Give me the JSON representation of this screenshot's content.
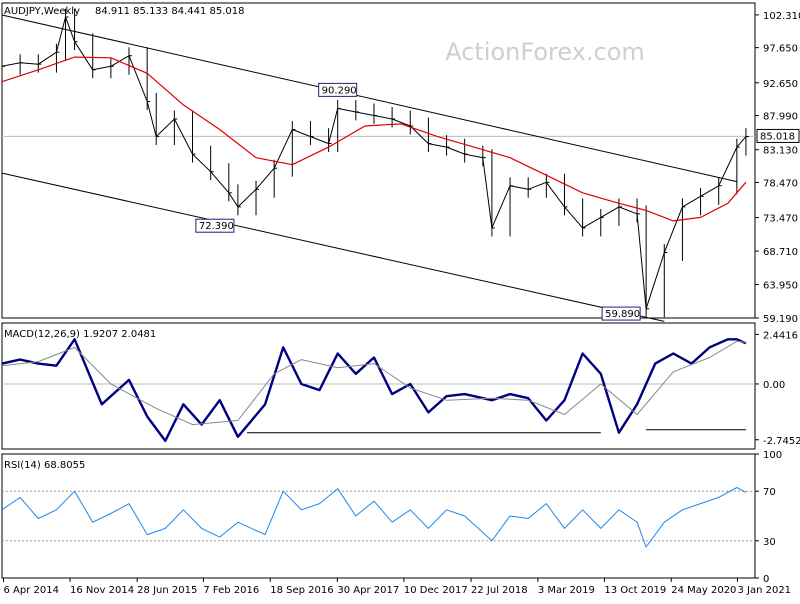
{
  "chart_data": {
    "type": "line",
    "watermark": "ActionForex.com",
    "x_ticks": [
      "6 Apr 2014",
      "16 Nov 2014",
      "28 Jun 2015",
      "7 Feb 2016",
      "18 Sep 2016",
      "30 Apr 2017",
      "10 Dec 2017",
      "22 Jul 2018",
      "3 Mar 2019",
      "13 Oct 2019",
      "24 May 2020",
      "3 Jan 2021"
    ],
    "price_panel": {
      "label": "AUDJPY,Weekly",
      "ohlc_text": "84.911 85.133 84.441 85.018",
      "y_ticks": [
        "102.310",
        "97.650",
        "92.650",
        "87.990",
        "83.130",
        "78.470",
        "73.470",
        "68.710",
        "63.950",
        "59.190"
      ],
      "ylim": [
        59.19,
        104.0
      ],
      "last_price": "85.018",
      "annotations": [
        {
          "text": "90.290",
          "date": "2017-05",
          "value": 90.29
        },
        {
          "text": "72.390",
          "date": "2016-06",
          "value": 72.39
        },
        {
          "text": "59.890",
          "date": "2020-03",
          "value": 59.89
        }
      ],
      "series": [
        {
          "role": "price",
          "color": "#000000",
          "x": [
            "2014-04",
            "2014-06",
            "2014-08",
            "2014-10",
            "2014-11",
            "2014-12",
            "2015-02",
            "2015-04",
            "2015-06",
            "2015-08",
            "2015-09",
            "2015-11",
            "2016-01",
            "2016-03",
            "2016-05",
            "2016-06",
            "2016-08",
            "2016-10",
            "2016-12",
            "2017-02",
            "2017-04",
            "2017-05",
            "2017-07",
            "2017-09",
            "2017-11",
            "2018-01",
            "2018-03",
            "2018-05",
            "2018-07",
            "2018-09",
            "2018-10",
            "2018-12",
            "2019-02",
            "2019-04",
            "2019-06",
            "2019-08",
            "2019-10",
            "2019-12",
            "2020-02",
            "2020-03",
            "2020-05",
            "2020-07",
            "2020-09",
            "2020-11",
            "2021-01",
            "2021-02"
          ],
          "close": [
            95.0,
            95.5,
            95.3,
            97.0,
            102.0,
            98.5,
            94.5,
            95.0,
            96.5,
            90.0,
            85.0,
            87.5,
            82.5,
            80.0,
            77.0,
            75.0,
            77.5,
            80.5,
            86.0,
            85.0,
            84.0,
            89.0,
            88.5,
            88.0,
            87.5,
            86.5,
            84.0,
            83.5,
            82.5,
            82.0,
            72.0,
            78.0,
            77.5,
            78.5,
            75.0,
            72.0,
            73.5,
            75.0,
            74.0,
            60.5,
            68.5,
            75.0,
            76.5,
            78.0,
            83.5,
            85.0
          ]
        },
        {
          "role": "moving-average",
          "color": "#e00000",
          "x": [
            "2014-04",
            "2014-08",
            "2014-12",
            "2015-04",
            "2015-08",
            "2015-12",
            "2016-04",
            "2016-08",
            "2016-12",
            "2017-04",
            "2017-08",
            "2017-12",
            "2018-04",
            "2018-08",
            "2018-12",
            "2019-04",
            "2019-08",
            "2019-12",
            "2020-03",
            "2020-06",
            "2020-09",
            "2020-12",
            "2021-02"
          ],
          "values": [
            92.8,
            94.5,
            96.3,
            96.2,
            94.0,
            89.5,
            86.0,
            82.0,
            81.0,
            83.5,
            86.5,
            86.8,
            85.0,
            83.5,
            82.0,
            79.5,
            77.0,
            75.5,
            74.5,
            73.0,
            73.5,
            75.5,
            78.5
          ]
        },
        {
          "role": "channel-upper",
          "color": "#000000",
          "x": [
            "2014-04",
            "2021-01"
          ],
          "values": [
            102.3,
            78.6
          ]
        },
        {
          "role": "channel-lower",
          "color": "#000000",
          "x": [
            "2014-04",
            "2020-05"
          ],
          "values": [
            79.8,
            58.7
          ]
        }
      ]
    },
    "macd_panel": {
      "label": "MACD(12,26,9) 1.9207 2.0481",
      "y_ticks": [
        "2.4416",
        "0.00",
        "-2.7452"
      ],
      "ylim": [
        -3.2,
        3.0
      ],
      "series": [
        {
          "role": "macd",
          "color": "#000080",
          "x": [
            "2014-04",
            "2014-06",
            "2014-08",
            "2014-10",
            "2014-12",
            "2015-03",
            "2015-06",
            "2015-08",
            "2015-10",
            "2015-12",
            "2016-02",
            "2016-04",
            "2016-06",
            "2016-09",
            "2016-11",
            "2017-01",
            "2017-03",
            "2017-05",
            "2017-07",
            "2017-09",
            "2017-11",
            "2018-01",
            "2018-03",
            "2018-05",
            "2018-07",
            "2018-10",
            "2018-12",
            "2019-02",
            "2019-04",
            "2019-06",
            "2019-08",
            "2019-10",
            "2019-12",
            "2020-02",
            "2020-04",
            "2020-06",
            "2020-08",
            "2020-10",
            "2020-12",
            "2021-01",
            "2021-02"
          ],
          "values": [
            1.0,
            1.2,
            1.0,
            0.9,
            2.2,
            -1.0,
            0.2,
            -1.6,
            -2.8,
            -1.0,
            -2.0,
            -0.8,
            -2.6,
            -1.0,
            1.8,
            0.0,
            -0.3,
            1.5,
            0.5,
            1.3,
            -0.5,
            0.0,
            -1.4,
            -0.6,
            -0.5,
            -0.8,
            -0.5,
            -0.7,
            -1.8,
            -0.8,
            1.5,
            0.5,
            -2.4,
            -1.0,
            1.0,
            1.5,
            1.0,
            1.8,
            2.2,
            2.2,
            2.0
          ]
        },
        {
          "role": "signal",
          "color": "#888888",
          "x": [
            "2014-04",
            "2014-08",
            "2014-12",
            "2015-04",
            "2015-09",
            "2016-01",
            "2016-06",
            "2016-10",
            "2017-01",
            "2017-05",
            "2017-09",
            "2018-01",
            "2018-05",
            "2018-10",
            "2019-02",
            "2019-06",
            "2019-10",
            "2020-02",
            "2020-06",
            "2020-10",
            "2021-01",
            "2021-02"
          ],
          "values": [
            0.9,
            1.1,
            1.8,
            0.0,
            -1.2,
            -2.0,
            -1.8,
            0.5,
            1.2,
            0.8,
            1.0,
            -0.2,
            -0.8,
            -0.7,
            -0.8,
            -1.5,
            0.0,
            -1.5,
            0.6,
            1.3,
            2.1,
            2.05
          ]
        },
        {
          "role": "support-line",
          "color": "#000000",
          "x": [
            "2016-07",
            "2019-10"
          ],
          "values": [
            -2.4,
            -2.4
          ]
        },
        {
          "role": "support-line",
          "color": "#000000",
          "x": [
            "2020-03",
            "2021-02"
          ],
          "values": [
            -2.25,
            -2.25
          ]
        }
      ]
    },
    "rsi_panel": {
      "label": "RSI(14) 68.8055",
      "y_ticks": [
        "100",
        "70",
        "30",
        "0"
      ],
      "ylim": [
        0,
        100
      ],
      "levels": [
        70,
        30
      ],
      "series": [
        {
          "role": "rsi",
          "color": "#1e88e5",
          "x": [
            "2014-04",
            "2014-06",
            "2014-08",
            "2014-10",
            "2014-12",
            "2015-02",
            "2015-04",
            "2015-06",
            "2015-08",
            "2015-10",
            "2015-12",
            "2016-02",
            "2016-04",
            "2016-06",
            "2016-09",
            "2016-11",
            "2017-01",
            "2017-03",
            "2017-05",
            "2017-07",
            "2017-09",
            "2017-11",
            "2018-01",
            "2018-03",
            "2018-05",
            "2018-07",
            "2018-10",
            "2018-12",
            "2019-02",
            "2019-04",
            "2019-06",
            "2019-08",
            "2019-10",
            "2019-12",
            "2020-02",
            "2020-03",
            "2020-05",
            "2020-07",
            "2020-09",
            "2020-11",
            "2021-01",
            "2021-02"
          ],
          "values": [
            55,
            65,
            48,
            55,
            70,
            45,
            52,
            60,
            35,
            40,
            55,
            40,
            33,
            45,
            35,
            70,
            55,
            60,
            72,
            50,
            62,
            45,
            55,
            40,
            55,
            50,
            30,
            50,
            48,
            60,
            40,
            55,
            40,
            55,
            45,
            25,
            45,
            55,
            60,
            65,
            73,
            69
          ]
        }
      ]
    }
  }
}
